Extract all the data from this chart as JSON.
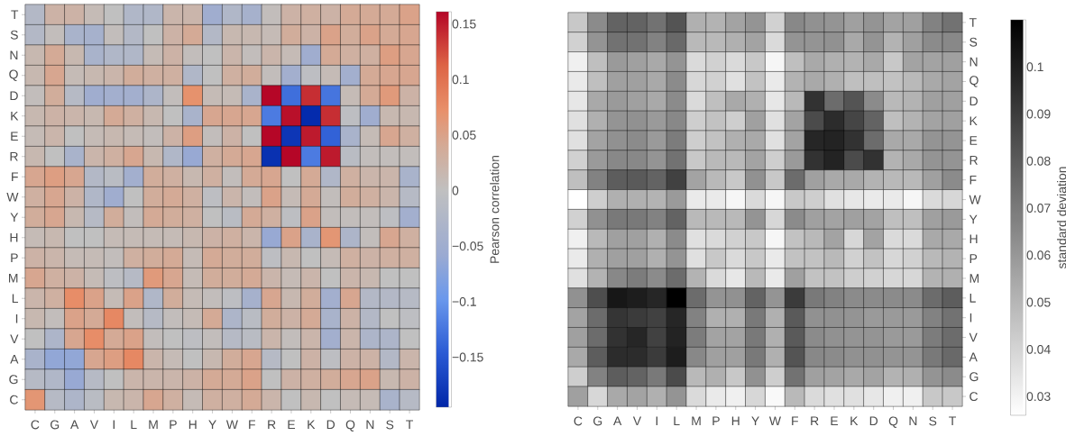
{
  "chart_data": [
    {
      "type": "heatmap",
      "categories": [
        "C",
        "G",
        "A",
        "V",
        "I",
        "L",
        "M",
        "P",
        "H",
        "Y",
        "W",
        "F",
        "R",
        "E",
        "K",
        "D",
        "Q",
        "N",
        "S",
        "T"
      ],
      "y_categories": [
        "T",
        "S",
        "N",
        "Q",
        "D",
        "K",
        "E",
        "R",
        "F",
        "W",
        "Y",
        "H",
        "P",
        "M",
        "L",
        "I",
        "V",
        "A",
        "G",
        "C"
      ],
      "cells": [
        [
          -0.02,
          0.025,
          0.025,
          0.01,
          0,
          -0.025,
          -0.025,
          0.02,
          0.02,
          -0.05,
          -0.025,
          -0.04,
          0.005,
          0.025,
          0.03,
          0.025,
          0.04,
          0.04,
          0.04,
          0.05
        ],
        [
          -0.02,
          0.005,
          -0.035,
          -0.04,
          0.005,
          -0.02,
          0,
          0.025,
          0.04,
          -0.02,
          0.015,
          0.015,
          0.01,
          0.035,
          0.025,
          0.05,
          0.035,
          0.05,
          0.04,
          0.045
        ],
        [
          0.015,
          0.04,
          0.015,
          -0.035,
          -0.025,
          -0.025,
          0.01,
          0.025,
          0.005,
          0,
          0.02,
          0.005,
          0.02,
          0.01,
          -0.05,
          0.04,
          0.03,
          0.03,
          0.055,
          0.045
        ],
        [
          0.015,
          0.045,
          0.01,
          0.015,
          0.02,
          0.035,
          0.03,
          0.03,
          -0.025,
          0,
          0.03,
          0.035,
          0.005,
          -0.045,
          -0.005,
          0.01,
          -0.045,
          0.04,
          0.045,
          0.045
        ],
        [
          0.005,
          0.035,
          -0.015,
          -0.05,
          -0.045,
          -0.045,
          -0.03,
          0.005,
          0.07,
          0.01,
          0.01,
          -0.035,
          0.16,
          -0.13,
          0.14,
          -0.125,
          0.01,
          0.04,
          0.06,
          0.025
        ],
        [
          0.015,
          0.025,
          0.02,
          0.015,
          0.04,
          0.03,
          0.015,
          0,
          -0.035,
          0.045,
          0.045,
          0.045,
          -0.12,
          0.155,
          -0.19,
          0.14,
          -0.005,
          -0.05,
          0.015,
          0.015
        ],
        [
          0.01,
          0.02,
          0,
          0.01,
          0.015,
          0.01,
          0.005,
          0.025,
          0.055,
          0.005,
          0.025,
          0,
          0.16,
          -0.18,
          0.15,
          -0.14,
          -0.035,
          0.01,
          0.045,
          0.03
        ],
        [
          0.015,
          0,
          -0.035,
          0.02,
          0.03,
          0.045,
          0.015,
          -0.025,
          -0.06,
          0.03,
          0.04,
          0.045,
          -0.185,
          0.16,
          -0.12,
          0.15,
          -0.01,
          0.005,
          0.005,
          0.005
        ],
        [
          0.045,
          0.055,
          0.045,
          -0.02,
          -0.01,
          -0.045,
          0.035,
          0.03,
          0.015,
          0.03,
          0.005,
          0.04,
          0.045,
          0,
          0.04,
          -0.025,
          0.03,
          0.02,
          0.02,
          -0.035
        ],
        [
          0.03,
          0.045,
          0.025,
          -0.025,
          -0.05,
          0,
          0.035,
          0.04,
          0.03,
          -0.005,
          0.02,
          0.005,
          0.05,
          0.01,
          0.04,
          0.005,
          0.035,
          0.03,
          0.02,
          -0.015
        ],
        [
          0.035,
          0.045,
          0.015,
          -0.015,
          0.035,
          0.005,
          0.04,
          0.035,
          0.03,
          0,
          -0.01,
          0.04,
          0.03,
          -0.005,
          0.05,
          0.005,
          0.005,
          0.005,
          -0.005,
          -0.045
        ],
        [
          0.01,
          0.015,
          0,
          0,
          0.01,
          0.01,
          0.01,
          0.01,
          0.015,
          0.025,
          0.03,
          0.02,
          -0.06,
          0.05,
          -0.035,
          0.065,
          -0.03,
          0.005,
          0.045,
          0.03
        ],
        [
          0.025,
          0.02,
          0.01,
          0.01,
          0.005,
          0.03,
          0.035,
          0.04,
          0.01,
          0.04,
          0.035,
          0.035,
          -0.005,
          0.015,
          0,
          0.01,
          0.03,
          0.025,
          0.03,
          0.03
        ],
        [
          0.045,
          0.03,
          0.025,
          0.01,
          -0.005,
          -0.015,
          0.06,
          0.045,
          0.01,
          0.035,
          0.035,
          0.04,
          0.02,
          0.01,
          0.02,
          0,
          0.02,
          0.015,
          0,
          0
        ],
        [
          0.02,
          0.03,
          0.075,
          0.05,
          0.01,
          0.05,
          -0.025,
          0.035,
          0.01,
          0.005,
          -0.005,
          -0.04,
          0.045,
          0.015,
          0.035,
          -0.045,
          0.045,
          -0.02,
          -0.02,
          -0.015
        ],
        [
          0.015,
          0.005,
          0.05,
          0.04,
          0.08,
          0.005,
          -0.015,
          0.005,
          0.01,
          0.04,
          -0.03,
          -0.01,
          0.035,
          0.025,
          0.04,
          -0.035,
          0.025,
          -0.02,
          0,
          -0.005
        ],
        [
          0,
          -0.03,
          0.045,
          0.075,
          0.04,
          0.05,
          0.005,
          0,
          -0.005,
          0.005,
          -0.015,
          -0.01,
          0.02,
          0.005,
          0.02,
          -0.045,
          0.02,
          -0.03,
          -0.03,
          0
        ],
        [
          -0.035,
          -0.065,
          -0.065,
          0.045,
          0.055,
          0.08,
          0.02,
          0.01,
          0,
          0.015,
          0.035,
          0.045,
          -0.015,
          0,
          0.025,
          -0.005,
          0.025,
          0.025,
          -0.02,
          0.02
        ],
        [
          -0.015,
          -0.025,
          -0.06,
          -0.015,
          0,
          0.02,
          0.02,
          0.02,
          0.025,
          0.04,
          0.04,
          0.05,
          0,
          0.025,
          0.03,
          0.035,
          0.045,
          0.05,
          0.015,
          0.025
        ],
        [
          0.065,
          -0.015,
          -0.03,
          -0.01,
          0.015,
          0.02,
          0.045,
          0.03,
          0.01,
          0.03,
          0.03,
          0.04,
          0.02,
          0,
          0.015,
          0,
          0.01,
          0.01,
          -0.035,
          -0.015
        ]
      ],
      "clim": [
        -0.195,
        0.161
      ],
      "cticks": [
        {
          "value": -0.15,
          "label": "−0.15"
        },
        {
          "value": -0.1,
          "label": "−0.1"
        },
        {
          "value": -0.05,
          "label": "−0.05"
        },
        0,
        0.05,
        0.1,
        0.15
      ],
      "clabel": "Pearson correlation"
    },
    {
      "type": "heatmap",
      "categories": [
        "C",
        "G",
        "A",
        "V",
        "I",
        "L",
        "M",
        "P",
        "H",
        "Y",
        "W",
        "F",
        "R",
        "E",
        "K",
        "D",
        "Q",
        "N",
        "S",
        "T"
      ],
      "y_categories": [
        "T",
        "S",
        "N",
        "Q",
        "D",
        "K",
        "E",
        "R",
        "F",
        "W",
        "Y",
        "H",
        "P",
        "M",
        "L",
        "I",
        "V",
        "A",
        "G",
        "C"
      ],
      "cells": [
        [
          0.044,
          0.064,
          0.077,
          0.077,
          0.072,
          0.082,
          0.052,
          0.051,
          0.056,
          0.061,
          0.041,
          0.065,
          0.062,
          0.061,
          0.057,
          0.061,
          0.056,
          0.057,
          0.067,
          0.072
        ],
        [
          0.041,
          0.061,
          0.072,
          0.072,
          0.067,
          0.075,
          0.049,
          0.049,
          0.052,
          0.056,
          0.038,
          0.061,
          0.061,
          0.062,
          0.054,
          0.061,
          0.051,
          0.057,
          0.064,
          0.065
        ],
        [
          0.031,
          0.047,
          0.059,
          0.057,
          0.054,
          0.061,
          0.038,
          0.041,
          0.038,
          0.044,
          0.029,
          0.047,
          0.054,
          0.052,
          0.051,
          0.054,
          0.044,
          0.056,
          0.056,
          0.057
        ],
        [
          0.033,
          0.047,
          0.057,
          0.057,
          0.054,
          0.064,
          0.039,
          0.041,
          0.036,
          0.046,
          0.033,
          0.051,
          0.054,
          0.052,
          0.047,
          0.047,
          0.046,
          0.049,
          0.054,
          0.056
        ],
        [
          0.034,
          0.054,
          0.059,
          0.057,
          0.054,
          0.064,
          0.038,
          0.047,
          0.054,
          0.052,
          0.034,
          0.049,
          0.093,
          0.074,
          0.082,
          0.064,
          0.049,
          0.051,
          0.057,
          0.057
        ],
        [
          0.036,
          0.052,
          0.061,
          0.062,
          0.059,
          0.065,
          0.042,
          0.046,
          0.042,
          0.057,
          0.036,
          0.056,
          0.085,
          0.095,
          0.087,
          0.077,
          0.047,
          0.051,
          0.056,
          0.057
        ],
        [
          0.036,
          0.056,
          0.062,
          0.064,
          0.059,
          0.069,
          0.042,
          0.046,
          0.052,
          0.054,
          0.036,
          0.056,
          0.097,
          0.098,
          0.093,
          0.074,
          0.054,
          0.054,
          0.061,
          0.061
        ],
        [
          0.041,
          0.059,
          0.065,
          0.065,
          0.061,
          0.072,
          0.044,
          0.049,
          0.049,
          0.056,
          0.042,
          0.059,
          0.093,
          0.098,
          0.085,
          0.093,
          0.051,
          0.054,
          0.061,
          0.061
        ],
        [
          0.047,
          0.067,
          0.079,
          0.08,
          0.077,
          0.088,
          0.056,
          0.049,
          0.044,
          0.062,
          0.044,
          0.074,
          0.057,
          0.054,
          0.054,
          0.051,
          0.049,
          0.049,
          0.057,
          0.064
        ],
        [
          0.026,
          0.042,
          0.052,
          0.052,
          0.051,
          0.059,
          0.033,
          0.033,
          0.029,
          0.038,
          0.029,
          0.044,
          0.042,
          0.036,
          0.034,
          0.033,
          0.033,
          0.029,
          0.038,
          0.039
        ],
        [
          0.041,
          0.062,
          0.07,
          0.07,
          0.067,
          0.077,
          0.049,
          0.049,
          0.049,
          0.061,
          0.039,
          0.064,
          0.057,
          0.056,
          0.057,
          0.056,
          0.047,
          0.047,
          0.057,
          0.059
        ],
        [
          0.031,
          0.049,
          0.057,
          0.057,
          0.052,
          0.064,
          0.036,
          0.038,
          0.041,
          0.044,
          0.029,
          0.046,
          0.049,
          0.056,
          0.039,
          0.056,
          0.038,
          0.038,
          0.054,
          0.054
        ],
        [
          0.033,
          0.052,
          0.057,
          0.057,
          0.052,
          0.061,
          0.036,
          0.044,
          0.038,
          0.044,
          0.033,
          0.046,
          0.046,
          0.049,
          0.041,
          0.046,
          0.039,
          0.041,
          0.049,
          0.051
        ],
        [
          0.036,
          0.051,
          0.065,
          0.069,
          0.064,
          0.074,
          0.051,
          0.038,
          0.034,
          0.049,
          0.033,
          0.057,
          0.046,
          0.046,
          0.042,
          0.041,
          0.039,
          0.039,
          0.051,
          0.052
        ],
        [
          0.062,
          0.084,
          0.102,
          0.1,
          0.097,
          0.11,
          0.074,
          0.061,
          0.062,
          0.077,
          0.061,
          0.09,
          0.07,
          0.067,
          0.064,
          0.064,
          0.064,
          0.064,
          0.074,
          0.079
        ],
        [
          0.056,
          0.074,
          0.092,
          0.09,
          0.088,
          0.097,
          0.067,
          0.052,
          0.052,
          0.07,
          0.052,
          0.08,
          0.062,
          0.062,
          0.061,
          0.059,
          0.059,
          0.059,
          0.067,
          0.072
        ],
        [
          0.057,
          0.074,
          0.093,
          0.097,
          0.088,
          0.098,
          0.069,
          0.056,
          0.056,
          0.07,
          0.052,
          0.08,
          0.064,
          0.062,
          0.061,
          0.061,
          0.059,
          0.059,
          0.069,
          0.074
        ],
        [
          0.054,
          0.079,
          0.095,
          0.095,
          0.09,
          0.1,
          0.065,
          0.057,
          0.057,
          0.07,
          0.052,
          0.082,
          0.065,
          0.064,
          0.062,
          0.062,
          0.061,
          0.061,
          0.07,
          0.075
        ],
        [
          0.042,
          0.067,
          0.079,
          0.077,
          0.07,
          0.085,
          0.049,
          0.052,
          0.044,
          0.062,
          0.042,
          0.072,
          0.057,
          0.056,
          0.054,
          0.056,
          0.051,
          0.052,
          0.061,
          0.064
        ],
        [
          0.057,
          0.039,
          0.054,
          0.056,
          0.052,
          0.061,
          0.038,
          0.033,
          0.031,
          0.039,
          0.028,
          0.049,
          0.038,
          0.036,
          0.036,
          0.034,
          0.031,
          0.031,
          0.044,
          0.044
        ]
      ],
      "clim": [
        0.026,
        0.11
      ],
      "cticks": [
        0.03,
        0.04,
        0.05,
        0.06,
        0.07,
        0.08,
        0.09,
        0.1
      ],
      "clabel": "standard deviation"
    }
  ]
}
